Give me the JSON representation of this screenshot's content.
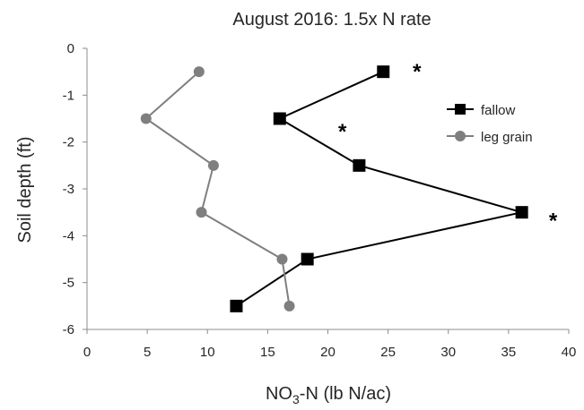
{
  "chart_data": {
    "type": "line",
    "title": "August 2016: 1.5x N rate",
    "xlabel_main": "NO",
    "xlabel_sub": "3",
    "xlabel_rest": "-N (lb N/ac)",
    "ylabel": "Soil depth (ft)",
    "xlim": [
      0,
      40
    ],
    "ylim": [
      -6,
      0
    ],
    "x_ticks": [
      "0",
      "5",
      "10",
      "15",
      "20",
      "25",
      "30",
      "35",
      "40"
    ],
    "y_ticks": [
      "0",
      "-1",
      "-2",
      "-3",
      "-4",
      "-5",
      "-6"
    ],
    "grid": false,
    "legend_position": "right",
    "series": [
      {
        "name": "fallow",
        "marker": "square",
        "color": "#000000",
        "points": [
          {
            "x": 24.6,
            "y": -0.5
          },
          {
            "x": 16.0,
            "y": -1.5
          },
          {
            "x": 22.6,
            "y": -2.5
          },
          {
            "x": 36.1,
            "y": -3.5
          },
          {
            "x": 18.3,
            "y": -4.5
          },
          {
            "x": 12.4,
            "y": -5.5
          }
        ]
      },
      {
        "name": "leg grain",
        "marker": "circle",
        "color": "#7f7f7f",
        "points": [
          {
            "x": 9.3,
            "y": -0.5
          },
          {
            "x": 4.9,
            "y": -1.5
          },
          {
            "x": 10.5,
            "y": -2.5
          },
          {
            "x": 9.5,
            "y": -3.5
          },
          {
            "x": 16.2,
            "y": -4.5
          },
          {
            "x": 16.8,
            "y": -5.5
          }
        ]
      }
    ],
    "annotations": [
      {
        "text": "*",
        "x": 27.4,
        "y": -0.42
      },
      {
        "text": "*",
        "x": 21.2,
        "y": -1.7
      },
      {
        "text": "*",
        "x": 38.7,
        "y": -3.6
      }
    ]
  }
}
